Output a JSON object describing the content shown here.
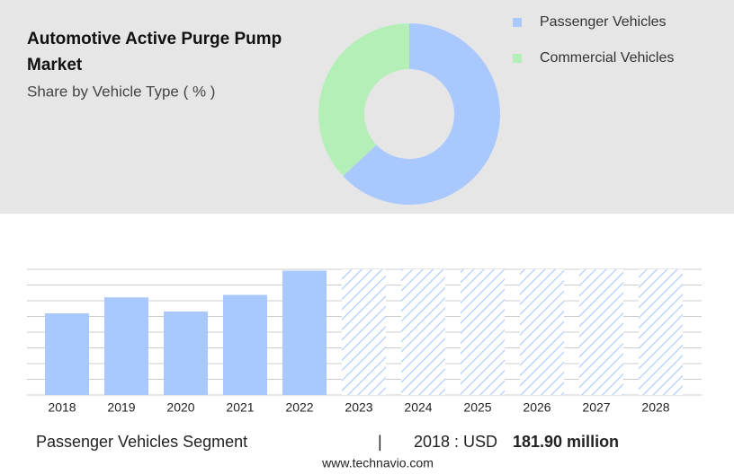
{
  "chart_data": [
    {
      "type": "donut",
      "title": "Automotive Active Purge Pump Market",
      "subtitle": "Share by Vehicle Type ( % )",
      "series": [
        {
          "name": "Passenger Vehicles",
          "color": "#a9c8fe",
          "value": 63
        },
        {
          "name": "Commercial Vehicles",
          "color": "#b5efb8",
          "value": 37
        }
      ]
    },
    {
      "type": "bar",
      "categories": [
        "2018",
        "2019",
        "2020",
        "2021",
        "2022",
        "2023",
        "2024",
        "2025",
        "2026",
        "2027",
        "2028"
      ],
      "values": [
        181.9,
        217.5,
        186,
        223,
        277,
        null,
        null,
        null,
        null,
        null,
        null
      ],
      "color": "#a9c8fe",
      "ylim": [
        0,
        280
      ],
      "yticks": [
        0,
        35,
        70,
        105,
        140,
        175,
        210,
        245,
        280
      ],
      "grid": true,
      "footer": {
        "segment": "Passenger Vehicles Segment",
        "separator": "|",
        "year_label": "2018 : USD",
        "value_label": "181.90 million",
        "source": "www.technavio.com"
      }
    }
  ]
}
